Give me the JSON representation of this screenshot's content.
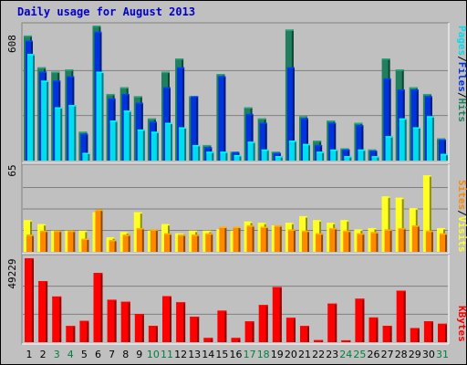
{
  "title": "Daily usage for August 2013",
  "colors": {
    "background": "#c0c0c0",
    "hits": "#1f7f5f",
    "files": "#0033dd",
    "pages": "#00ddee",
    "visits": "#ffff22",
    "sites": "#ff8800",
    "kbytes": "#ff0000",
    "title": "#0000cc",
    "weekend_day_label": "#007f3f"
  },
  "chart_data": [
    {
      "type": "bar",
      "panel": "hits-files-pages",
      "categories": [
        "1",
        "2",
        "3",
        "4",
        "5",
        "6",
        "7",
        "8",
        "9",
        "10",
        "11",
        "12",
        "13",
        "14",
        "15",
        "16",
        "17",
        "18",
        "19",
        "20",
        "21",
        "22",
        "23",
        "24",
        "25",
        "26",
        "27",
        "28",
        "29",
        "30",
        "31"
      ],
      "ymax_label": "608",
      "ymax": 608,
      "legend": {
        "pages": "Pages",
        "files": "Files",
        "hits": "Hits",
        "sep": "/"
      },
      "series": [
        {
          "name": "Hits",
          "values": [
            563,
            420,
            400,
            410,
            130,
            608,
            300,
            330,
            290,
            190,
            400,
            460,
            290,
            70,
            390,
            40,
            240,
            190,
            40,
            590,
            200,
            90,
            180,
            55,
            170,
            50,
            460,
            410,
            330,
            300,
            100
          ]
        },
        {
          "name": "Files",
          "values": [
            540,
            400,
            360,
            380,
            120,
            580,
            280,
            300,
            260,
            175,
            330,
            420,
            290,
            60,
            380,
            38,
            210,
            170,
            35,
            420,
            190,
            70,
            170,
            50,
            160,
            45,
            370,
            320,
            320,
            290,
            95
          ]
        },
        {
          "name": "Pages",
          "values": [
            480,
            360,
            240,
            250,
            35,
            400,
            180,
            225,
            140,
            130,
            170,
            150,
            70,
            40,
            40,
            25,
            85,
            50,
            20,
            90,
            75,
            40,
            50,
            20,
            50,
            20,
            110,
            190,
            150,
            200,
            30
          ]
        }
      ]
    },
    {
      "type": "bar",
      "panel": "visits-sites",
      "categories": [
        "1",
        "2",
        "3",
        "4",
        "5",
        "6",
        "7",
        "8",
        "9",
        "10",
        "11",
        "12",
        "13",
        "14",
        "15",
        "16",
        "17",
        "18",
        "19",
        "20",
        "21",
        "22",
        "23",
        "24",
        "25",
        "26",
        "27",
        "28",
        "29",
        "30",
        "31"
      ],
      "ymax_label": "65",
      "ymax": 65,
      "legend": {
        "sites": "Sites",
        "visits": "Visits",
        "sep": "/"
      },
      "series": [
        {
          "name": "Visits",
          "values": [
            24,
            21,
            16,
            16,
            16,
            30,
            11,
            15,
            30,
            16,
            21,
            14,
            16,
            16,
            17,
            16,
            23,
            22,
            20,
            22,
            27,
            24,
            22,
            24,
            17,
            18,
            42,
            41,
            33,
            58,
            18
          ]
        },
        {
          "name": "Sites",
          "values": [
            13,
            16,
            16,
            16,
            10,
            32,
            9,
            13,
            18,
            17,
            14,
            13,
            13,
            14,
            19,
            19,
            20,
            19,
            20,
            17,
            16,
            14,
            18,
            16,
            14,
            15,
            17,
            18,
            20,
            16,
            14
          ]
        }
      ]
    },
    {
      "type": "bar",
      "panel": "kbytes",
      "categories": [
        "1",
        "2",
        "3",
        "4",
        "5",
        "6",
        "7",
        "8",
        "9",
        "10",
        "11",
        "12",
        "13",
        "14",
        "15",
        "16",
        "17",
        "18",
        "19",
        "20",
        "21",
        "22",
        "23",
        "24",
        "25",
        "26",
        "27",
        "28",
        "29",
        "30",
        "31"
      ],
      "ymax_label": "49229",
      "ymax": 49229,
      "legend": {
        "kbytes": "KBytes"
      },
      "series": [
        {
          "name": "KBytes",
          "values": [
            49229,
            35800,
            26800,
            9500,
            12500,
            40600,
            24900,
            23700,
            16500,
            9600,
            27000,
            23400,
            14900,
            2500,
            18500,
            2500,
            12200,
            21800,
            32300,
            14300,
            9500,
            1200,
            22600,
            1100,
            25500,
            14500,
            9600,
            30200,
            8300,
            12300,
            10800
          ]
        }
      ]
    }
  ]
}
